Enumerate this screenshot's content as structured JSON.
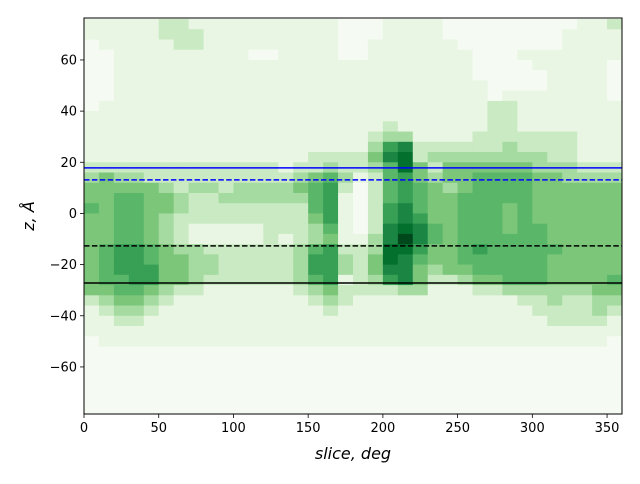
{
  "chart_data": {
    "type": "heatmap",
    "title": "",
    "xlabel": "slice, deg",
    "ylabel": "z, Å",
    "xlim": [
      0,
      360
    ],
    "ylim": [
      -78.4,
      76.4
    ],
    "x_ticks": [
      0,
      50,
      100,
      150,
      200,
      250,
      300,
      350
    ],
    "y_ticks": [
      -60,
      -40,
      -20,
      0,
      20,
      40,
      60
    ],
    "grid": false,
    "colormap": [
      "#f5fbf2",
      "#e8f6e3",
      "#c9eac2",
      "#a5dba0",
      "#7cc67a",
      "#5ab769",
      "#38a055",
      "#1b8644",
      "#03702e",
      "#00471c"
    ],
    "x_bin_start": 0,
    "x_bin_width": 10,
    "z_bin_top": 76,
    "z_bin_height": 4,
    "intensity_scale": "0 (lowest) to 9 (highest)",
    "rows": [
      "111112211111111110001111000000000112",
      "111112221111111110001111000000001111",
      "011111221111111110011111100000001111",
      "001111111110011110011111110001111111",
      "001111111111111111111111110000111110",
      "001111111111111111111111110000011110",
      "001111111111111111111111111000011110",
      "001111111111111111111111111011111110",
      "011111111111111111111111111221111111",
      "111111111111111111111111111221111111",
      "111111111111111111112111111221111111",
      "111111111111111111123311112222222111",
      "111111111111111111136722222232222111",
      "111111111111111222247823333333322111",
      "222222222222212232235842444444333222",
      "343322222222223453125643445555443333",
      "444443233233334562025654345555444444",
      "445544322333333561025654455555444444",
      "545544322222222561026754455545444444",
      "445543222222222461026764455545444444",
      "445543211111222351027875455545544444",
      "445543211111212341137975455555544444",
      "456654332222223562238864456555554444",
      "456654433222223663248754455555544444",
      "456664433222223663247743445555544444",
      "455664432222223561236742234455544445",
      "445543221111112342222331112233333344",
      "234432111111111232111111111112232233",
      "123321111111111121111111111111222232",
      "112211111111111111111111111111122221",
      "111111111111111111111111111111111111",
      "011111111111111111111111111111111110",
      "000000000000000000000000000000000000",
      "000000000000000000000000000000000000",
      "000000000000000000000000000000000000",
      "000000000000000000000000000000000000",
      "000000000000000000000000000000000000",
      "000000000000000000000000000000000000",
      "000000000000000000000000000000000000"
    ],
    "hlines": [
      {
        "z": 17.8,
        "color": "#0000ff",
        "style": "solid"
      },
      {
        "z": 13.1,
        "color": "#0000ff",
        "style": "dashed"
      },
      {
        "z": -12.7,
        "color": "#000000",
        "style": "dashed"
      },
      {
        "z": -27.2,
        "color": "#000000",
        "style": "solid"
      }
    ]
  }
}
